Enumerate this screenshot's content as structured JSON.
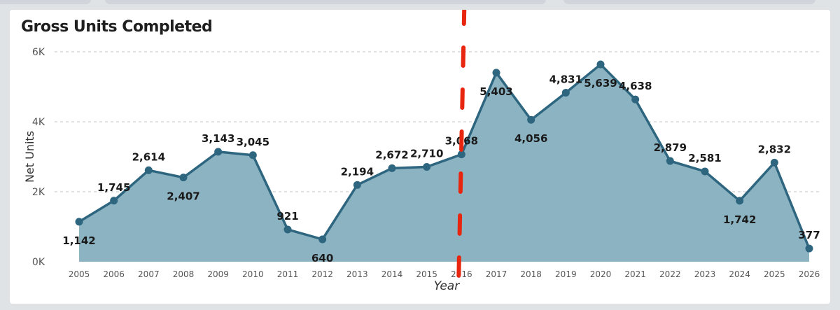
{
  "chart_data": {
    "type": "area",
    "title": "Gross Units Completed",
    "xlabel": "Year",
    "ylabel": "Net Units",
    "ylim": [
      0,
      6000
    ],
    "yticks": [
      0,
      2000,
      4000,
      6000
    ],
    "ytick_labels": [
      "0K",
      "2K",
      "4K",
      "6K"
    ],
    "grid": true,
    "categories": [
      "2005",
      "2006",
      "2007",
      "2008",
      "2009",
      "2010",
      "2011",
      "2012",
      "2013",
      "2014",
      "2015",
      "2016",
      "2017",
      "2018",
      "2019",
      "2020",
      "2021",
      "2022",
      "2023",
      "2024",
      "2025",
      "2026"
    ],
    "values": [
      1142,
      1745,
      2614,
      2407,
      3143,
      3045,
      921,
      640,
      2194,
      2672,
      2710,
      3068,
      5403,
      4056,
      4831,
      5639,
      4638,
      2879,
      2581,
      1742,
      2832,
      377
    ],
    "data_labels": [
      "1,142",
      "1,745",
      "2,614",
      "2,407",
      "3,143",
      "3,045",
      "921",
      "640",
      "2,194",
      "2,672",
      "2,710",
      "3,068",
      "5,403",
      "4,056",
      "4,831",
      "5,639",
      "4,638",
      "2,879",
      "2,581",
      "1,742",
      "2,832",
      "377"
    ],
    "annotation": {
      "type": "dashed-vertical-line",
      "at_category": "2016",
      "color": "#e8260f"
    },
    "colors": {
      "line": "#2e6680",
      "fill": "#8cb3c2",
      "grid": "#cfcfcf",
      "annotation": "#e8260f"
    }
  }
}
